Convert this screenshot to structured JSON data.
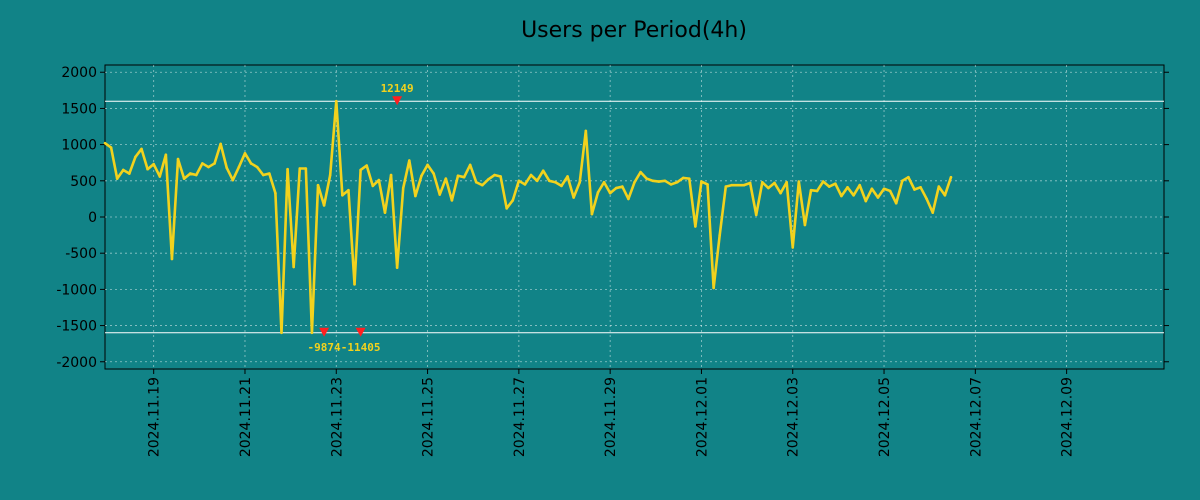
{
  "chart_data": {
    "type": "line",
    "title": "Users per Period(4h)",
    "xlabel": "",
    "ylabel": "",
    "ylim": [
      -2100,
      2100
    ],
    "xlim": [
      0,
      174
    ],
    "grid": true,
    "y_ticks": [
      2000,
      1500,
      1000,
      500,
      0,
      -500,
      -1000,
      -1500,
      -2000
    ],
    "y_tick_labels": [
      "2000",
      "1500",
      "1000",
      "500",
      "0",
      "-500",
      "-1000",
      "-1500",
      "-2000"
    ],
    "x_ticks": [
      {
        "index": 8,
        "label": "2024.11.19"
      },
      {
        "index": 23,
        "label": "2024.11.21"
      },
      {
        "index": 38,
        "label": "2024.11.23"
      },
      {
        "index": 53,
        "label": "2024.11.25"
      },
      {
        "index": 68,
        "label": "2024.11.27"
      },
      {
        "index": 83,
        "label": "2024.11.29"
      },
      {
        "index": 98,
        "label": "2024.12.01"
      },
      {
        "index": 113,
        "label": "2024.12.03"
      },
      {
        "index": 128,
        "label": "2024.12.05"
      },
      {
        "index": 143,
        "label": "2024.12.07"
      },
      {
        "index": 158,
        "label": "2024.12.09"
      }
    ],
    "reference_lines": [
      1600,
      -1600
    ],
    "annotations": [
      {
        "index": 48,
        "value": 1600,
        "label": "12149",
        "position": "above"
      },
      {
        "index": 36,
        "value": -1600,
        "label": "-9874",
        "position": "below"
      },
      {
        "index": 42,
        "value": -1600,
        "label": "-11405",
        "position": "below"
      }
    ],
    "series": [
      {
        "name": "users",
        "color": "#f2d21d",
        "values": [
          1020,
          960,
          530,
          650,
          600,
          830,
          940,
          660,
          730,
          560,
          860,
          -580,
          800,
          530,
          600,
          580,
          740,
          690,
          740,
          1010,
          680,
          510,
          690,
          880,
          740,
          690,
          580,
          600,
          330,
          -1600,
          660,
          -690,
          670,
          670,
          -1600,
          440,
          160,
          580,
          1600,
          300,
          370,
          -930,
          650,
          710,
          430,
          510,
          60,
          580,
          -700,
          400,
          780,
          290,
          570,
          720,
          600,
          310,
          530,
          230,
          570,
          550,
          720,
          480,
          440,
          520,
          580,
          560,
          120,
          230,
          500,
          450,
          580,
          500,
          640,
          500,
          480,
          430,
          560,
          270,
          480,
          1190,
          40,
          340,
          480,
          330,
          400,
          420,
          250,
          480,
          620,
          530,
          500,
          490,
          500,
          450,
          480,
          540,
          530,
          -130,
          490,
          450,
          -980,
          -250,
          420,
          440,
          440,
          440,
          470,
          30,
          480,
          400,
          470,
          330,
          480,
          -420,
          490,
          -110,
          370,
          360,
          490,
          420,
          460,
          290,
          410,
          300,
          440,
          220,
          390,
          270,
          390,
          360,
          190,
          500,
          550,
          380,
          410,
          250,
          60,
          420,
          300,
          550
        ]
      }
    ]
  }
}
